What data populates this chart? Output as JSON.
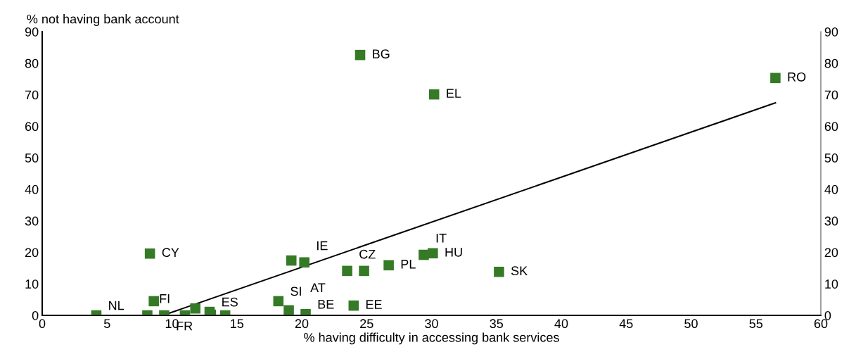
{
  "chart_data": {
    "type": "scatter",
    "xlabel": "% having difficulty in accessing bank services",
    "ylabel": "% not having bank account",
    "series": [
      {
        "color": "#357a26",
        "marker": "square",
        "x": [
          4.17,
          8.1,
          9.4,
          11.0,
          11.8,
          12.9,
          13.0,
          14.1,
          8.6,
          8.3,
          19.2,
          20.2,
          23.5,
          24.8,
          18.2,
          19.0,
          20.3,
          24.0,
          26.7,
          29.4,
          30.1,
          35.2,
          24.5,
          30.2,
          56.5
        ],
        "values": [
          0,
          0,
          0,
          0,
          2.2,
          1.1,
          0.2,
          0,
          4.5,
          19.6,
          17.4,
          16.8,
          14.1,
          14.1,
          4.5,
          1.6,
          0.4,
          3.1,
          15.9,
          19.2,
          19.7,
          13.8,
          82.6,
          70.1,
          75.3
        ]
      },
      {
        "type": "line",
        "color": "#000000",
        "marker": "none",
        "x": [
          9.3,
          56.5
        ],
        "values": [
          0,
          67.4
        ]
      }
    ],
    "annotations": [
      {
        "text": "NL",
        "x": 4.17,
        "y": 0
      },
      {
        "text": "FI",
        "x": 8.1,
        "y": 0
      },
      {
        "text": "FR",
        "x": 9.4,
        "y": 0
      },
      {
        "text": "ES",
        "x": 12.9,
        "y": 1.1
      },
      {
        "text": "CY",
        "x": 8.3,
        "y": 19.6
      },
      {
        "text": "IE",
        "x": 20.2,
        "y": 16.8
      },
      {
        "text": "CZ",
        "x": 23.5,
        "y": 14.1
      },
      {
        "text": "SI",
        "x": 18.2,
        "y": 4.5
      },
      {
        "text": "AT",
        "x": 19.0,
        "y": 1.6
      },
      {
        "text": "BE",
        "x": 20.3,
        "y": 0.4
      },
      {
        "text": "EE",
        "x": 24.0,
        "y": 3.1
      },
      {
        "text": "PL",
        "x": 26.7,
        "y": 15.9
      },
      {
        "text": "IT",
        "x": 29.4,
        "y": 19.2
      },
      {
        "text": "HU",
        "x": 30.1,
        "y": 19.7
      },
      {
        "text": "SK",
        "x": 35.2,
        "y": 13.8
      },
      {
        "text": "BG",
        "x": 24.5,
        "y": 82.6
      },
      {
        "text": "EL",
        "x": 30.2,
        "y": 70.1
      },
      {
        "text": "RO",
        "x": 56.5,
        "y": 75.3
      }
    ],
    "xlim": [
      0,
      60
    ],
    "xticks": [
      0,
      5,
      10,
      15,
      20,
      25,
      30,
      35,
      40,
      45,
      50,
      55,
      60
    ],
    "ylim": [
      0,
      90
    ],
    "yticks": [
      0,
      10,
      20,
      30,
      40,
      50,
      60,
      70,
      80,
      90
    ],
    "y2lim": [
      0,
      90
    ],
    "y2ticks": [
      0,
      10,
      20,
      30,
      40,
      50,
      60,
      70,
      80,
      90
    ],
    "grid": false,
    "legend": false
  }
}
